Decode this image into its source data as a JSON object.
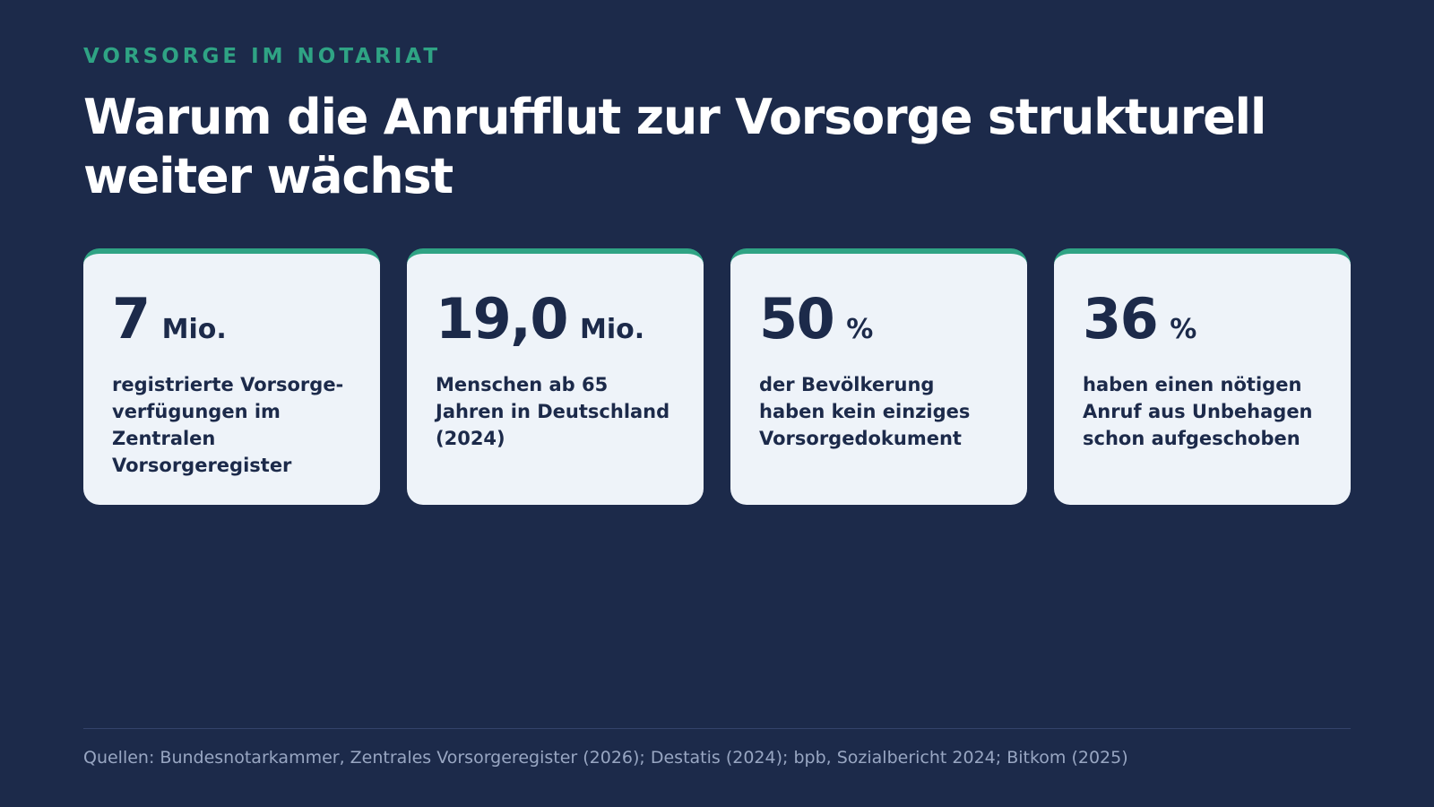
{
  "header": {
    "eyebrow": "VORSORGE IM NOTARIAT",
    "title": "Warum die Anrufflut zur Vorsorge strukturell weiter wächst"
  },
  "stats": [
    {
      "value": "7",
      "unit": "Mio.",
      "description": "registrierte Vorsorge-verfügungen im Zentralen Vorsorgeregister"
    },
    {
      "value": "19,0",
      "unit": "Mio.",
      "description": "Menschen ab 65 Jahren in Deutschland (2024)"
    },
    {
      "value": "50",
      "unit": "%",
      "description": "der Bevölkerung haben kein einziges Vorsorgedokument"
    },
    {
      "value": "36",
      "unit": "%",
      "description": "haben einen nötigen Anruf aus Unbehagen schon aufgeschoben"
    }
  ],
  "footer": {
    "sources": "Quellen: Bundesnotarkammer, Zentrales Vorsorgeregister (2026); Destatis (2024); bpb, Sozialbericht 2024; Bitkom (2025)"
  },
  "colors": {
    "background": "#1c2a4a",
    "accent": "#2fa384",
    "card": "#eef3f9",
    "text_dark": "#1c2a4a",
    "footer_text": "#98a6c2"
  }
}
